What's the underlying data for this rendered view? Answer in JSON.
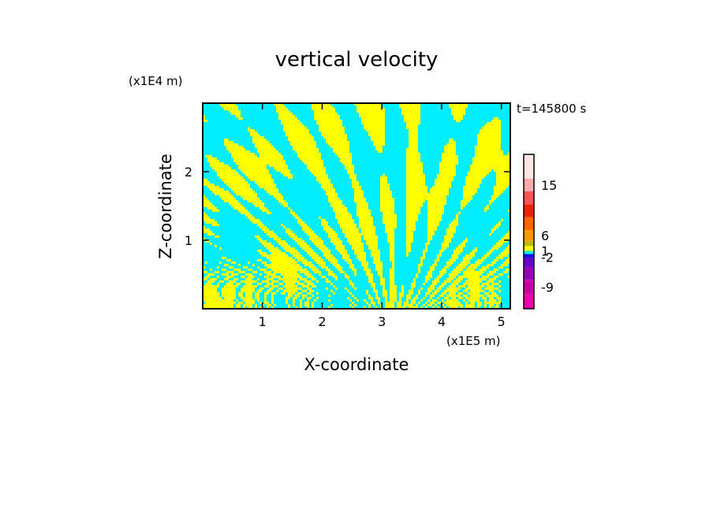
{
  "colors": {
    "yellow": "#ffff00",
    "cyan": "#00eeff",
    "frame": "#000000"
  },
  "chart_data": {
    "type": "heatmap",
    "title": "vertical velocity",
    "xlabel": "X-coordinate",
    "ylabel": "Z-coordinate",
    "x_unit": "(x1E5 m)",
    "y_unit": "(x1E4 m)",
    "time_label": "t=145800 s",
    "xlim": [
      0,
      5.15
    ],
    "ylim": [
      0,
      3.0
    ],
    "xticks": [
      1,
      2,
      3,
      4,
      5
    ],
    "yticks": [
      1,
      2
    ],
    "colorbar": {
      "levels": [
        "-9",
        "-2",
        "1",
        "6",
        "15"
      ],
      "bands": [
        "#ee00aa",
        "#cc00aa",
        "#9900bb",
        "#6600cc",
        "#0000ff",
        "#00eeff",
        "#ffff00",
        "#bbbb00",
        "#ff9900",
        "#ff6600",
        "#ee2200",
        "#ff5555",
        "#ffaaaa",
        "#ffe6e6"
      ]
    }
  }
}
